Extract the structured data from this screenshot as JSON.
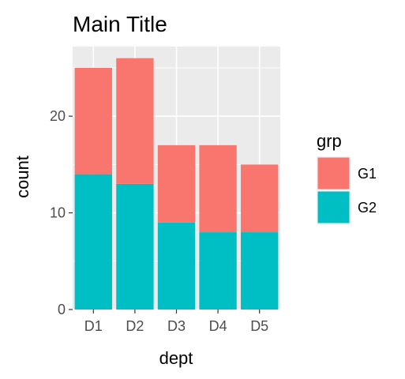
{
  "chart_data": {
    "type": "bar",
    "stacked": true,
    "title": "Main Title",
    "xlabel": "dept",
    "ylabel": "count",
    "categories": [
      "D1",
      "D2",
      "D3",
      "D4",
      "D5"
    ],
    "series": [
      {
        "name": "G1",
        "values": [
          11,
          13,
          8,
          9,
          7
        ],
        "color": "#F8766D"
      },
      {
        "name": "G2",
        "values": [
          14,
          13,
          9,
          8,
          8
        ],
        "color": "#00BFC4"
      }
    ],
    "stack_order_bottom_to_top": [
      "G2",
      "G1"
    ],
    "ylim": [
      0,
      27.2
    ],
    "yticks": [
      0,
      10,
      20
    ],
    "grid": true,
    "legend": {
      "title": "grp",
      "position": "right"
    },
    "colors": {
      "panel_background": "#EBEBEB",
      "grid": "#FFFFFF"
    }
  }
}
